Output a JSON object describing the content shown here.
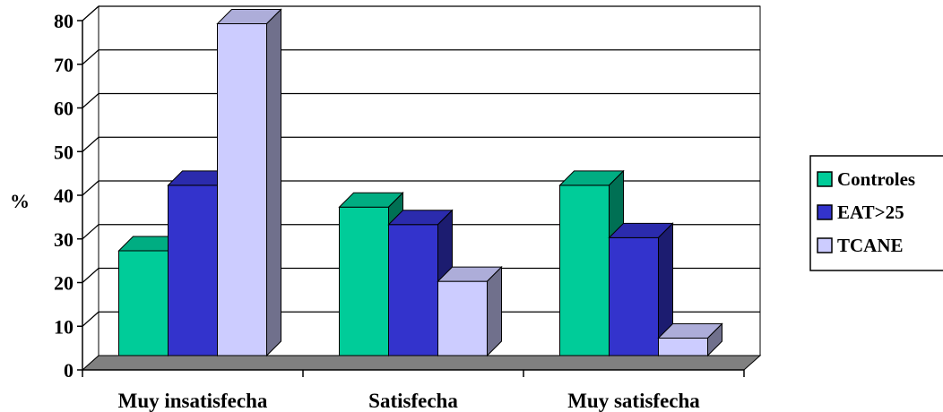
{
  "chart_data": {
    "type": "bar",
    "style": "3d-clustered-column",
    "categories": [
      "Muy insatisfecha",
      "Satisfecha",
      "Muy satisfecha"
    ],
    "ylabel": "%",
    "xlabel": "",
    "ylim": [
      0,
      80
    ],
    "yticks": [
      "0",
      "10",
      "20",
      "30",
      "40",
      "50",
      "60",
      "70",
      "80"
    ],
    "grid": true,
    "legend_position": "right",
    "series": [
      {
        "name": "Controles",
        "values": [
          24,
          34,
          39
        ],
        "color": "#00cc99"
      },
      {
        "name": "EAT>25",
        "values": [
          39,
          30,
          27
        ],
        "color": "#3333cc"
      },
      {
        "name": "TCANE",
        "values": [
          76,
          17,
          4
        ],
        "color": "#ccccff"
      }
    ]
  }
}
